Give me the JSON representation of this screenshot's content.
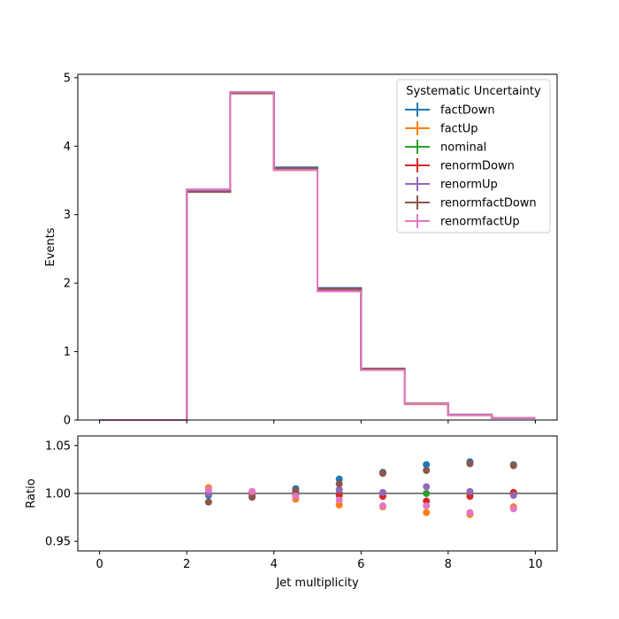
{
  "chart_data": [
    {
      "type": "step",
      "title": "",
      "xlabel": "",
      "ylabel": "Events",
      "xlim": [
        -0.5,
        10.5
      ],
      "ylim": [
        0,
        5.05
      ],
      "xticks": [
        0,
        2,
        4,
        6,
        8,
        10
      ],
      "yticks": [
        0,
        1,
        2,
        3,
        4,
        5
      ],
      "bin_edges": [
        0,
        1,
        2,
        3,
        4,
        5,
        6,
        7,
        8,
        9,
        10
      ],
      "legend": {
        "title": "Systematic Uncertainty",
        "location": "upper-right"
      },
      "series": [
        {
          "name": "factDown",
          "color": "#1f77b4",
          "values": [
            0,
            0,
            3.34,
            4.78,
            3.69,
            1.93,
            0.75,
            0.24,
            0.08,
            0.03
          ]
        },
        {
          "name": "factUp",
          "color": "#ff7f0e",
          "values": [
            0,
            0,
            3.37,
            4.79,
            3.65,
            1.88,
            0.73,
            0.23,
            0.07,
            0.03
          ]
        },
        {
          "name": "nominal",
          "color": "#2ca02c",
          "values": [
            0,
            0,
            3.35,
            4.78,
            3.67,
            1.9,
            0.74,
            0.235,
            0.075,
            0.03
          ]
        },
        {
          "name": "renormDown",
          "color": "#d62728",
          "values": [
            0,
            0,
            3.35,
            4.78,
            3.66,
            1.9,
            0.74,
            0.233,
            0.073,
            0.03
          ]
        },
        {
          "name": "renormUp",
          "color": "#9467bd",
          "values": [
            0,
            0,
            3.35,
            4.79,
            3.67,
            1.91,
            0.74,
            0.236,
            0.075,
            0.03
          ]
        },
        {
          "name": "renormfactDown",
          "color": "#8c564b",
          "values": [
            0,
            0,
            3.33,
            4.77,
            3.68,
            1.92,
            0.75,
            0.24,
            0.077,
            0.031
          ]
        },
        {
          "name": "renormfactUp",
          "color": "#e377c2",
          "values": [
            0,
            0,
            3.37,
            4.79,
            3.65,
            1.88,
            0.73,
            0.232,
            0.074,
            0.03
          ]
        }
      ]
    },
    {
      "type": "scatter",
      "title": "",
      "xlabel": "Jet multiplicity",
      "ylabel": "Ratio",
      "xlim": [
        -0.5,
        10.5
      ],
      "ylim": [
        0.94,
        1.06
      ],
      "xticks": [
        0,
        2,
        4,
        6,
        8,
        10
      ],
      "yticks": [
        0.95,
        1.0,
        1.05
      ],
      "ytick_labels": [
        "0.95",
        "1.00",
        "1.05"
      ],
      "reference_line": 1.0,
      "x": [
        2.5,
        3.5,
        4.5,
        5.5,
        6.5,
        7.5,
        8.5,
        9.5
      ],
      "series": [
        {
          "name": "factDown",
          "color": "#1f77b4",
          "values": [
            0.998,
            1.0,
            1.005,
            1.015,
            1.022,
            1.03,
            1.033,
            1.03
          ]
        },
        {
          "name": "factUp",
          "color": "#ff7f0e",
          "values": [
            1.006,
            1.002,
            0.994,
            0.988,
            0.986,
            0.98,
            0.978,
            0.986
          ]
        },
        {
          "name": "nominal",
          "color": "#2ca02c",
          "values": [
            1.0,
            1.0,
            1.0,
            1.0,
            1.0,
            1.0,
            1.0,
            1.0
          ]
        },
        {
          "name": "renormDown",
          "color": "#d62728",
          "values": [
            1.0,
            0.999,
            0.998,
            0.998,
            0.997,
            0.992,
            0.997,
            1.001
          ]
        },
        {
          "name": "renormUp",
          "color": "#9467bd",
          "values": [
            1.0,
            1.001,
            1.002,
            1.004,
            1.001,
            1.007,
            1.002,
            0.998
          ]
        },
        {
          "name": "renormfactDown",
          "color": "#8c564b",
          "values": [
            0.991,
            0.996,
            1.003,
            1.01,
            1.021,
            1.024,
            1.031,
            1.029
          ]
        },
        {
          "name": "renormfactUp",
          "color": "#e377c2",
          "values": [
            1.004,
            1.002,
            0.997,
            0.993,
            0.987,
            0.987,
            0.98,
            0.984
          ]
        }
      ]
    }
  ]
}
